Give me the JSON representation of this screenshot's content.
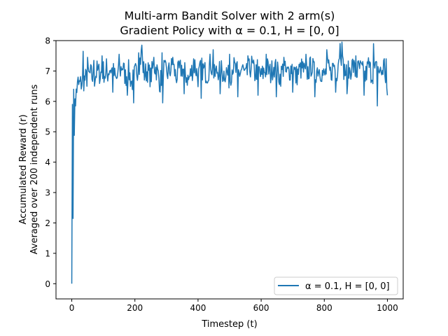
{
  "chart_data": {
    "type": "line",
    "title": "Multi-arm Bandit Solver with 2 arm(s)",
    "subtitle": "Gradient Policy with α = 0.1, H = [0, 0]",
    "xlabel": "Timestep (t)",
    "ylabel": "Accumulated Reward (r)",
    "ylabel2": "Averaged over 200 independent runs",
    "xlim": [
      -50,
      1050
    ],
    "ylim": [
      -0.5,
      8
    ],
    "xticks": [
      0,
      200,
      400,
      600,
      800,
      1000
    ],
    "yticks": [
      0,
      1,
      2,
      3,
      4,
      5,
      6,
      7,
      8
    ],
    "grid": false,
    "legend_position": "lower-right",
    "series": [
      {
        "name": "α = 0.1, H = [0, 0]",
        "color": "#1f77b4",
        "x_start": 0,
        "x_step": 10,
        "values": [
          0.0,
          6.3,
          6.5,
          6.6,
          6.7,
          6.8,
          6.9,
          6.7,
          7.0,
          6.9,
          7.0,
          6.8,
          7.1,
          7.0,
          6.7,
          6.9,
          7.2,
          6.8,
          7.0,
          6.6,
          6.9,
          7.1,
          7.5,
          6.9,
          7.0,
          6.8,
          7.2,
          7.0,
          6.6,
          7.1,
          6.9,
          7.0,
          7.2,
          6.8,
          7.0,
          7.1,
          6.9,
          6.7,
          7.0,
          7.2,
          6.8,
          7.1,
          7.0,
          6.9,
          7.3,
          6.8,
          7.0,
          7.1,
          6.9,
          7.0,
          6.7,
          7.2,
          7.0,
          6.9,
          7.1,
          6.8,
          7.0,
          7.2,
          6.9,
          7.1,
          6.8,
          7.0,
          7.1,
          6.9,
          7.2,
          7.0,
          6.8,
          7.1,
          6.9,
          7.0,
          7.2,
          6.8,
          7.0,
          7.1,
          6.9,
          7.0,
          7.2,
          6.9,
          7.1,
          7.0,
          6.8,
          7.1,
          6.9,
          7.2,
          7.0,
          7.8,
          7.1,
          6.9,
          7.0,
          7.2,
          6.9,
          7.1,
          7.0,
          6.8,
          7.2,
          6.9,
          7.0,
          7.1,
          6.9,
          7.2,
          6.2
        ],
        "spikes": [
          [
            1,
            7.25
          ],
          [
            2,
            5.9
          ],
          [
            5,
            6.4
          ],
          [
            12,
            5.85
          ],
          [
            20,
            6.8
          ],
          [
            35,
            7.65
          ],
          [
            50,
            7.45
          ],
          [
            70,
            7.35
          ],
          [
            95,
            7.5
          ],
          [
            110,
            7.4
          ],
          [
            130,
            6.3
          ],
          [
            150,
            7.55
          ],
          [
            175,
            6.2
          ],
          [
            195,
            5.95
          ],
          [
            212,
            7.6
          ],
          [
            222,
            7.85
          ],
          [
            260,
            7.45
          ],
          [
            285,
            7.6
          ],
          [
            288,
            5.95
          ],
          [
            320,
            7.45
          ],
          [
            355,
            6.25
          ],
          [
            385,
            7.4
          ],
          [
            410,
            6.1
          ],
          [
            448,
            7.7
          ],
          [
            470,
            6.25
          ],
          [
            500,
            7.55
          ],
          [
            525,
            6.15
          ],
          [
            558,
            7.5
          ],
          [
            590,
            6.2
          ],
          [
            615,
            7.55
          ],
          [
            648,
            6.15
          ],
          [
            672,
            7.45
          ],
          [
            700,
            6.3
          ],
          [
            742,
            7.55
          ],
          [
            770,
            6.15
          ],
          [
            808,
            7.7
          ],
          [
            835,
            6.3
          ],
          [
            855,
            7.95
          ],
          [
            872,
            6.25
          ],
          [
            900,
            7.5
          ],
          [
            925,
            6.2
          ],
          [
            955,
            7.9
          ],
          [
            968,
            5.85
          ],
          [
            980,
            6.95
          ],
          [
            988,
            7.35
          ],
          [
            995,
            7.4
          ]
        ]
      }
    ]
  }
}
